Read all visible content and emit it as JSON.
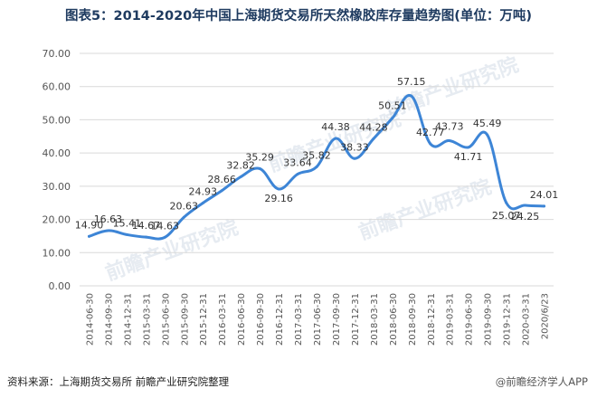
{
  "title": "图表5：2014-2020年中国上海期货交易所天然橡胶库存量趋势图(单位：万吨)",
  "source": "资料来源：上海期货交易所 前瞻产业研究院整理",
  "brand": "@前瞻经济学人APP",
  "watermark": "前瞻产业研究院",
  "colors": {
    "line": "#3d85d6",
    "title": "#1f3b60"
  },
  "chart_data": {
    "type": "line",
    "title": "图表5：2014-2020年中国上海期货交易所天然橡胶库存量趋势图(单位：万吨)",
    "unit": "万吨",
    "categories": [
      "2014-06-30",
      "2014-09-30",
      "2014-12-31",
      "2015-03-31",
      "2015-06-30",
      "2015-09-30",
      "2015-12-31",
      "2016-03-31",
      "2016-06-30",
      "2016-09-30",
      "2016-12-31",
      "2017-03-31",
      "2017-06-30",
      "2017-09-30",
      "2017-12-31",
      "2018-03-31",
      "2018-06-30",
      "2018-09-30",
      "2018-12-31",
      "2019-03-31",
      "2019-06-30",
      "2019-09-30",
      "2019-12-31",
      "2020-03-31",
      "2020/6/23"
    ],
    "values": [
      14.9,
      16.63,
      15.41,
      14.67,
      14.63,
      20.63,
      24.93,
      28.66,
      32.82,
      35.29,
      29.16,
      33.64,
      35.82,
      44.38,
      38.33,
      44.28,
      50.51,
      57.15,
      42.77,
      43.73,
      41.71,
      45.49,
      25.07,
      24.25,
      24.01
    ],
    "labels": [
      "14.90",
      "16.63",
      "15.41",
      "14.67",
      "14.63",
      "20.63",
      "24.93",
      "28.66",
      "32.82",
      "35.29",
      "29.16",
      "33.64",
      "35.82",
      "44.38",
      "38.33",
      "44.28",
      "50.51",
      "57.15",
      "42.77",
      "43.73",
      "41.71",
      "45.49",
      "25.07",
      "24.25",
      "24.01"
    ],
    "yticks": [
      "0.00",
      "10.00",
      "20.00",
      "30.00",
      "40.00",
      "50.00",
      "60.00",
      "70.00"
    ],
    "ylim": [
      0,
      70
    ],
    "grid": true,
    "legend": "none"
  }
}
